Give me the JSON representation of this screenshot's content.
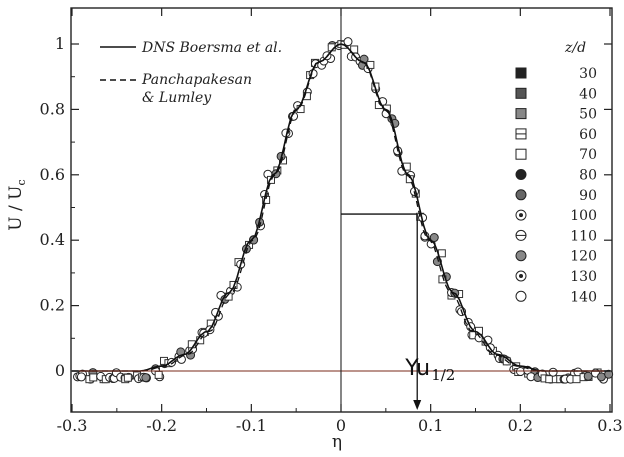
{
  "chart_data": {
    "type": "scatter",
    "xlabel": "η",
    "ylabel": "U / U",
    "ylabel_sub": "c",
    "xlim": [
      -0.3,
      0.3
    ],
    "ylim": [
      -0.05,
      1.1
    ],
    "xticks": [
      -0.3,
      -0.2,
      -0.1,
      0,
      0.1,
      0.2,
      0.3
    ],
    "xtick_labels": [
      "-0.3",
      "-0.2",
      "-0.1",
      "0",
      "0.1",
      "0.2",
      "0.3"
    ],
    "yticks": [
      0,
      0.2,
      0.4,
      0.6,
      0.8,
      1
    ],
    "ytick_labels": [
      "0",
      "0.2",
      "0.4",
      "0.6",
      "0.8",
      "1"
    ],
    "grid": false,
    "legend_lines": [
      {
        "label": "DNS Boersma et al.",
        "style": "solid"
      },
      {
        "label_line1": "Panchapakesan",
        "label_line2": "& Lumley",
        "style": "dashed"
      }
    ],
    "zd_legend": {
      "title": "z/d",
      "entries": [
        {
          "label": "30",
          "marker": "square-filled"
        },
        {
          "label": "40",
          "marker": "square-dark"
        },
        {
          "label": "50",
          "marker": "square-gray"
        },
        {
          "label": "60",
          "marker": "square-cross"
        },
        {
          "label": "70",
          "marker": "square-open"
        },
        {
          "label": "80",
          "marker": "circle-filled"
        },
        {
          "label": "90",
          "marker": "circle-half"
        },
        {
          "label": "100",
          "marker": "circle-dot"
        },
        {
          "label": "110",
          "marker": "circle-cross"
        },
        {
          "label": "120",
          "marker": "circle-gray"
        },
        {
          "label": "130",
          "marker": "circle-ring"
        },
        {
          "label": "140",
          "marker": "circle-open"
        }
      ]
    },
    "profile": {
      "description": "Gaussian self-similar velocity profile",
      "x": [
        -0.3,
        -0.275,
        -0.25,
        -0.225,
        -0.2,
        -0.175,
        -0.15,
        -0.125,
        -0.1,
        -0.075,
        -0.05,
        -0.025,
        0,
        0.025,
        0.05,
        0.075,
        0.1,
        0.125,
        0.15,
        0.175,
        0.2,
        0.225,
        0.25,
        0.275,
        0.3
      ],
      "y": [
        0.0,
        0.0,
        0.0,
        0.0,
        0.015,
        0.05,
        0.12,
        0.24,
        0.4,
        0.6,
        0.8,
        0.945,
        1.0,
        0.945,
        0.8,
        0.6,
        0.4,
        0.24,
        0.12,
        0.05,
        0.015,
        0.0,
        0.0,
        0.0,
        0.0
      ]
    },
    "annotations": {
      "half_width_label": "Yu",
      "half_width_sub": "1/2",
      "half_width_x": 0.085,
      "half_width_y": 0.48
    }
  }
}
